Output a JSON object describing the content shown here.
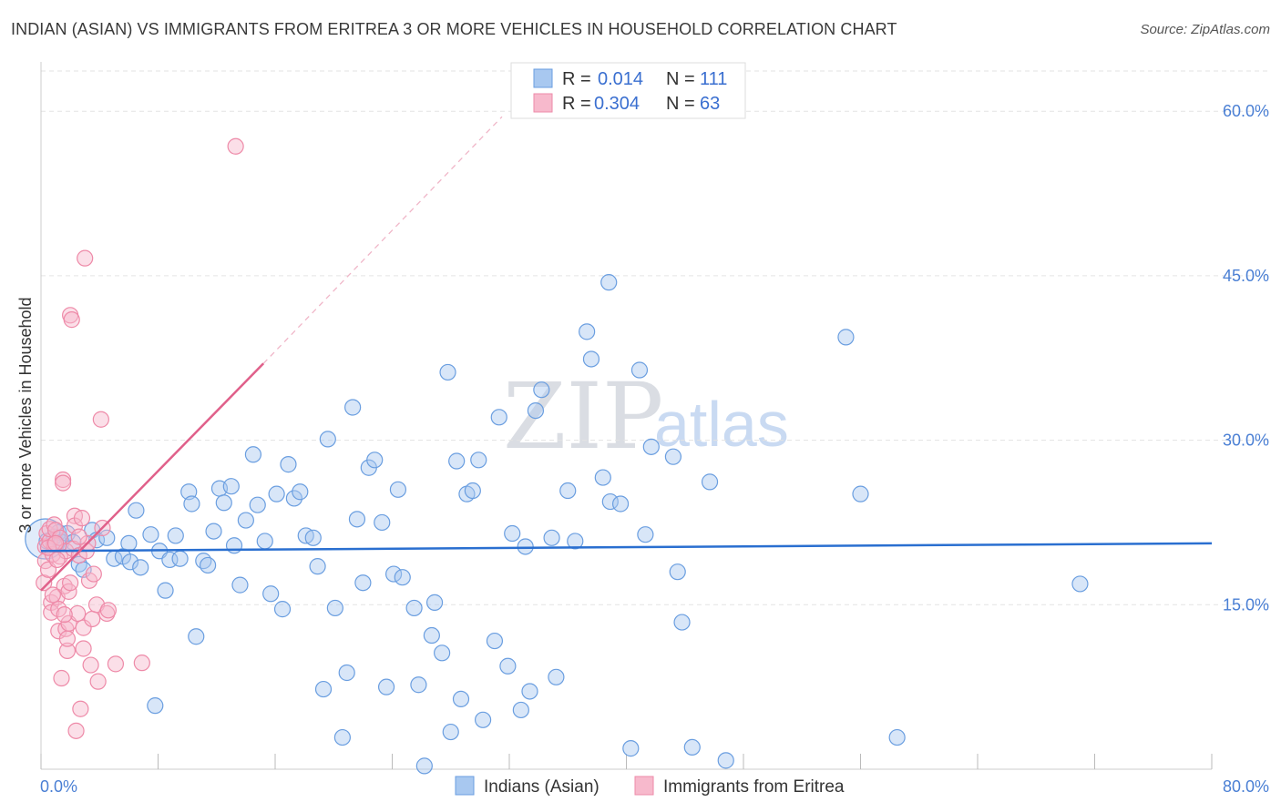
{
  "title": "INDIAN (ASIAN) VS IMMIGRANTS FROM ERITREA 3 OR MORE VEHICLES IN HOUSEHOLD CORRELATION CHART",
  "source": "Source: ZipAtlas.com",
  "watermark": {
    "zip": "ZIP",
    "atlas": "atlas"
  },
  "colors": {
    "blue_fill": "#a8c8f0",
    "blue_stroke": "#6a9ee0",
    "blue_line": "#2a6fd0",
    "pink_fill": "#f7b9cc",
    "pink_stroke": "#ee8aa8",
    "pink_line": "#e0608a",
    "axis_text": "#4a7fd4"
  },
  "legend": {
    "r_label": "R =",
    "n_label": "N =",
    "series": [
      {
        "r": "0.014",
        "n": "111"
      },
      {
        "r": "0.304",
        "n": "63"
      }
    ]
  },
  "chart_data": {
    "type": "scatter",
    "title": "INDIAN (ASIAN) VS IMMIGRANTS FROM ERITREA 3 OR MORE VEHICLES IN HOUSEHOLD CORRELATION CHART",
    "xlabel": "",
    "ylabel": "3 or more Vehicles in Household",
    "xlim": [
      0,
      80
    ],
    "ylim": [
      0,
      65
    ],
    "x_tick_labels": [
      "0.0%",
      "80.0%"
    ],
    "y_ticks": [
      15,
      30,
      45,
      60
    ],
    "y_tick_labels": [
      "15.0%",
      "30.0%",
      "45.0%",
      "60.0%"
    ],
    "grid": true,
    "series": [
      {
        "name": "Indians (Asian)",
        "color": "blue",
        "r": 0.014,
        "n": 111,
        "trend": {
          "x0": 0,
          "y0": 19.9,
          "x1": 80,
          "y1": 20.6
        },
        "points": [
          [
            0.4,
            20.8
          ],
          [
            0.9,
            21.2
          ],
          [
            1.2,
            21.6
          ],
          [
            1.4,
            20.7
          ],
          [
            1.8,
            21.5
          ],
          [
            2.2,
            20.7
          ],
          [
            2.6,
            18.7
          ],
          [
            2.9,
            18.2
          ],
          [
            3.5,
            21.8
          ],
          [
            3.8,
            20.9
          ],
          [
            4.5,
            21.1
          ],
          [
            5.0,
            19.2
          ],
          [
            5.6,
            19.4
          ],
          [
            6.0,
            20.6
          ],
          [
            6.1,
            18.9
          ],
          [
            6.5,
            23.6
          ],
          [
            6.8,
            18.4
          ],
          [
            7.5,
            21.4
          ],
          [
            7.8,
            5.8
          ],
          [
            8.1,
            19.9
          ],
          [
            8.5,
            16.3
          ],
          [
            8.8,
            19.1
          ],
          [
            9.2,
            21.3
          ],
          [
            9.5,
            19.2
          ],
          [
            10.1,
            25.3
          ],
          [
            10.3,
            24.2
          ],
          [
            10.6,
            12.1
          ],
          [
            11.1,
            19.0
          ],
          [
            11.4,
            18.6
          ],
          [
            11.8,
            21.7
          ],
          [
            12.2,
            25.6
          ],
          [
            12.5,
            24.3
          ],
          [
            13.0,
            25.8
          ],
          [
            13.2,
            20.4
          ],
          [
            13.6,
            16.8
          ],
          [
            14.0,
            22.7
          ],
          [
            14.5,
            28.7
          ],
          [
            14.8,
            24.1
          ],
          [
            15.3,
            20.8
          ],
          [
            15.7,
            16.0
          ],
          [
            16.1,
            25.1
          ],
          [
            16.5,
            14.6
          ],
          [
            16.9,
            27.8
          ],
          [
            17.3,
            24.7
          ],
          [
            17.7,
            25.3
          ],
          [
            18.1,
            21.3
          ],
          [
            18.6,
            21.1
          ],
          [
            18.9,
            18.5
          ],
          [
            19.3,
            7.3
          ],
          [
            19.6,
            30.1
          ],
          [
            20.1,
            14.7
          ],
          [
            20.6,
            2.9
          ],
          [
            20.9,
            8.8
          ],
          [
            21.3,
            33.0
          ],
          [
            21.6,
            22.8
          ],
          [
            22.0,
            17.0
          ],
          [
            22.4,
            27.5
          ],
          [
            22.8,
            28.2
          ],
          [
            23.3,
            22.5
          ],
          [
            23.6,
            7.5
          ],
          [
            24.1,
            17.8
          ],
          [
            24.4,
            25.5
          ],
          [
            24.7,
            17.5
          ],
          [
            25.5,
            14.7
          ],
          [
            25.8,
            7.7
          ],
          [
            26.2,
            0.3
          ],
          [
            26.7,
            12.2
          ],
          [
            26.9,
            15.2
          ],
          [
            27.4,
            10.6
          ],
          [
            27.8,
            36.2
          ],
          [
            28.0,
            3.4
          ],
          [
            28.4,
            28.1
          ],
          [
            28.7,
            6.4
          ],
          [
            29.1,
            25.1
          ],
          [
            29.5,
            25.4
          ],
          [
            29.9,
            28.2
          ],
          [
            30.2,
            4.5
          ],
          [
            31.0,
            11.7
          ],
          [
            31.3,
            32.1
          ],
          [
            31.9,
            9.4
          ],
          [
            32.2,
            21.5
          ],
          [
            32.8,
            5.4
          ],
          [
            33.1,
            20.3
          ],
          [
            33.4,
            7.1
          ],
          [
            33.8,
            32.7
          ],
          [
            34.2,
            34.6
          ],
          [
            34.9,
            21.1
          ],
          [
            35.2,
            8.4
          ],
          [
            36.0,
            25.4
          ],
          [
            36.5,
            20.8
          ],
          [
            37.3,
            39.9
          ],
          [
            37.6,
            37.4
          ],
          [
            38.4,
            26.6
          ],
          [
            38.8,
            44.4
          ],
          [
            38.9,
            24.4
          ],
          [
            39.6,
            24.2
          ],
          [
            40.3,
            1.9
          ],
          [
            40.9,
            36.4
          ],
          [
            41.3,
            21.4
          ],
          [
            41.7,
            29.4
          ],
          [
            43.2,
            28.5
          ],
          [
            43.5,
            18.0
          ],
          [
            43.8,
            13.4
          ],
          [
            44.5,
            2.0
          ],
          [
            45.7,
            26.2
          ],
          [
            46.8,
            0.8
          ],
          [
            55.0,
            39.4
          ],
          [
            56.0,
            25.1
          ],
          [
            58.5,
            2.9
          ],
          [
            71.0,
            16.9
          ]
        ]
      },
      {
        "name": "Immigrants from Eritrea",
        "color": "pink",
        "r": 0.304,
        "n": 63,
        "trend": {
          "x0": 0,
          "y0": 16.3,
          "x1": 15.2,
          "y1": 37.0
        },
        "trend_ext": {
          "x0": 15.2,
          "y0": 37.0,
          "x1": 31.5,
          "y1": 59.5
        },
        "points": [
          [
            0.2,
            17.0
          ],
          [
            0.3,
            20.3
          ],
          [
            0.3,
            19.0
          ],
          [
            0.4,
            21.5
          ],
          [
            0.5,
            18.2
          ],
          [
            0.6,
            20.8
          ],
          [
            0.6,
            21.9
          ],
          [
            0.7,
            15.2
          ],
          [
            0.7,
            14.3
          ],
          [
            0.8,
            19.6
          ],
          [
            0.9,
            22.3
          ],
          [
            0.9,
            20.5
          ],
          [
            1.0,
            21.8
          ],
          [
            1.1,
            15.7
          ],
          [
            1.2,
            14.6
          ],
          [
            1.2,
            12.6
          ],
          [
            1.3,
            19.4
          ],
          [
            1.3,
            21.1
          ],
          [
            1.4,
            8.3
          ],
          [
            1.5,
            26.4
          ],
          [
            1.5,
            26.1
          ],
          [
            1.6,
            16.7
          ],
          [
            1.7,
            19.9
          ],
          [
            1.7,
            12.8
          ],
          [
            1.8,
            10.8
          ],
          [
            1.8,
            11.9
          ],
          [
            1.9,
            13.3
          ],
          [
            1.9,
            16.2
          ],
          [
            2.0,
            41.4
          ],
          [
            2.1,
            41.0
          ],
          [
            2.2,
            20.1
          ],
          [
            2.3,
            23.1
          ],
          [
            2.3,
            22.2
          ],
          [
            2.4,
            3.5
          ],
          [
            2.5,
            14.2
          ],
          [
            2.6,
            19.5
          ],
          [
            2.7,
            5.5
          ],
          [
            2.8,
            22.9
          ],
          [
            2.9,
            12.9
          ],
          [
            2.9,
            11.0
          ],
          [
            3.0,
            46.6
          ],
          [
            3.1,
            19.9
          ],
          [
            3.2,
            20.6
          ],
          [
            3.3,
            17.2
          ],
          [
            3.4,
            9.5
          ],
          [
            3.5,
            13.7
          ],
          [
            3.6,
            17.8
          ],
          [
            3.8,
            15.0
          ],
          [
            3.9,
            8.0
          ],
          [
            4.1,
            31.9
          ],
          [
            4.2,
            22.0
          ],
          [
            4.5,
            14.2
          ],
          [
            4.6,
            14.5
          ],
          [
            5.1,
            9.6
          ],
          [
            6.9,
            9.7
          ],
          [
            13.3,
            56.8
          ],
          [
            0.5,
            20.2
          ],
          [
            1.0,
            20.6
          ],
          [
            1.1,
            19.1
          ],
          [
            2.0,
            17.0
          ],
          [
            0.8,
            15.9
          ],
          [
            1.6,
            14.1
          ],
          [
            2.6,
            21.2
          ]
        ]
      }
    ]
  }
}
